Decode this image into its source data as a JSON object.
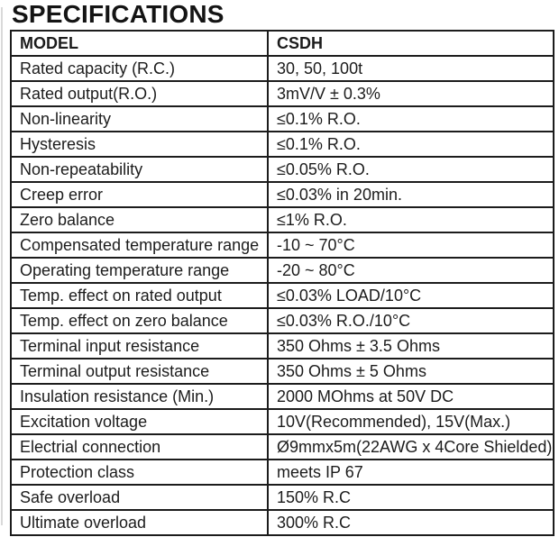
{
  "page": {
    "title": "SPECIFICATIONS"
  },
  "colors": {
    "background": "#ffffff",
    "border": "#1c1c1c",
    "text": "#1c1c1c",
    "scan_edge_artifact": "#d9d9d9"
  },
  "table": {
    "header": {
      "model": "MODEL",
      "value": "CSDH"
    },
    "rows": [
      {
        "label": "Rated capacity (R.C.)",
        "value": "30, 50, 100t"
      },
      {
        "label": "Rated output(R.O.)",
        "value": "3mV/V ± 0.3%"
      },
      {
        "label": "Non-linearity",
        "value": "≤0.1% R.O."
      },
      {
        "label": "Hysteresis",
        "value": "≤0.1% R.O."
      },
      {
        "label": "Non-repeatability",
        "value": "≤0.05% R.O."
      },
      {
        "label": "Creep error",
        "value": "≤0.03% in 20min."
      },
      {
        "label": "Zero balance",
        "value": "≤1% R.O."
      },
      {
        "label": "Compensated temperature range",
        "value": "-10 ~ 70°C"
      },
      {
        "label": "Operating temperature range",
        "value": "-20 ~ 80°C"
      },
      {
        "label": "Temp. effect on rated output",
        "value": "≤0.03% LOAD/10°C"
      },
      {
        "label": "Temp. effect on zero balance",
        "value": "≤0.03% R.O./10°C"
      },
      {
        "label": "Terminal input resistance",
        "value": "350 Ohms ± 3.5 Ohms"
      },
      {
        "label": "Terminal output resistance",
        "value": "350 Ohms ± 5 Ohms"
      },
      {
        "label": "Insulation resistance (Min.)",
        "value": "2000 MOhms at 50V DC"
      },
      {
        "label": "Excitation voltage",
        "value": "10V(Recommended), 15V(Max.)"
      },
      {
        "label": "Electrial connection",
        "value": "Ø9mmx5m(22AWG x 4Core Shielded)"
      },
      {
        "label": "Protection class",
        "value": "meets IP 67"
      },
      {
        "label": "Safe overload",
        "value": "150% R.C"
      },
      {
        "label": "Ultimate overload",
        "value": "300% R.C"
      }
    ]
  }
}
